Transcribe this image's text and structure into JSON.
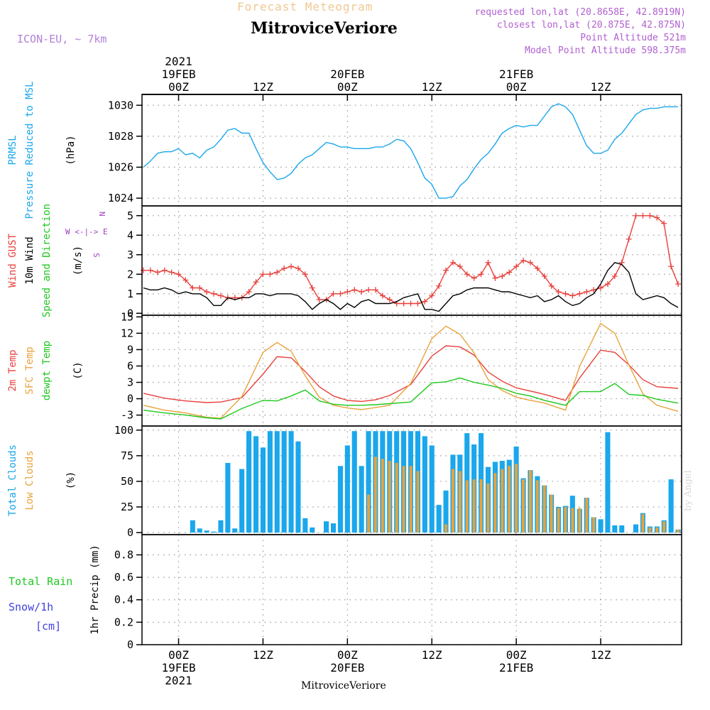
{
  "header": {
    "title": "Forecast Meteogram",
    "location": "MitroviceVeriore",
    "model": "ICON-EU, ~ 7km",
    "requested": "requested lon,lat (20.8658E, 42.8919N)",
    "closest": "closest lon,lat (20.875E, 42.875N)",
    "point_altitude": "Point Altitude 521m",
    "model_altitude": "Model Point Altitude 598.375m",
    "footer": "MitroviceVeriore",
    "watermark": "by Angel"
  },
  "time_axis": {
    "top_labels": [
      {
        "h": 0,
        "lines": [
          "2021",
          "19FEB",
          "00Z"
        ]
      },
      {
        "h": 12,
        "lines": [
          "12Z"
        ]
      },
      {
        "h": 24,
        "lines": [
          "20FEB",
          "00Z"
        ]
      },
      {
        "h": 36,
        "lines": [
          "12Z"
        ]
      },
      {
        "h": 48,
        "lines": [
          "21FEB",
          "00Z"
        ]
      },
      {
        "h": 60,
        "lines": [
          "12Z"
        ]
      }
    ],
    "bottom_labels": [
      {
        "h": 0,
        "lines": [
          "00Z",
          "19FEB",
          "2021"
        ]
      },
      {
        "h": 12,
        "lines": [
          "12Z"
        ]
      },
      {
        "h": 24,
        "lines": [
          "00Z",
          "20FEB"
        ]
      },
      {
        "h": 36,
        "lines": [
          "12Z"
        ]
      },
      {
        "h": 48,
        "lines": [
          "00Z",
          "21FEB"
        ]
      },
      {
        "h": 60,
        "lines": [
          "12Z"
        ]
      }
    ]
  },
  "colors": {
    "blue": "#1aa7ec",
    "orange": "#e8a33c",
    "red": "#e8413c",
    "green": "#1ec81e",
    "black": "#000000",
    "purple": "#a040c0",
    "snow": "#4040e0",
    "grid": "#999999"
  },
  "chart_data": [
    {
      "type": "line",
      "panel": "pressure",
      "ylabels": [
        {
          "text": "PRMSL",
          "color": "blue"
        },
        {
          "text": "Pressure Reduced to MSL",
          "color": "blue"
        },
        {
          "text": "(hPa)",
          "color": "black"
        }
      ],
      "ylim": [
        1023.5,
        1030.7
      ],
      "yticks": [
        1024,
        1026,
        1028,
        1030
      ],
      "x": [
        -5,
        -4,
        -3,
        -2,
        -1,
        0,
        1,
        2,
        3,
        4,
        5,
        6,
        7,
        8,
        9,
        10,
        11,
        12,
        13,
        14,
        15,
        16,
        17,
        18,
        19,
        20,
        21,
        22,
        23,
        24,
        25,
        26,
        27,
        28,
        29,
        30,
        31,
        32,
        33,
        34,
        35,
        36,
        37,
        38,
        39,
        40,
        41,
        42,
        43,
        44,
        45,
        46,
        47,
        48,
        49,
        50,
        51,
        52,
        53,
        54,
        55,
        56,
        57,
        58,
        59,
        60,
        61,
        62,
        63,
        64,
        65,
        66,
        67,
        68,
        69,
        70,
        71
      ],
      "series": [
        {
          "color": "blue",
          "values": [
            1026.0,
            1026.4,
            1026.9,
            1027.0,
            1027.0,
            1027.2,
            1026.8,
            1026.9,
            1026.6,
            1027.1,
            1027.3,
            1027.8,
            1028.4,
            1028.5,
            1028.2,
            1028.2,
            1027.2,
            1026.3,
            1025.7,
            1025.2,
            1025.3,
            1025.6,
            1026.2,
            1026.6,
            1026.8,
            1027.2,
            1027.6,
            1027.5,
            1027.3,
            1027.3,
            1027.2,
            1027.2,
            1027.2,
            1027.3,
            1027.3,
            1027.5,
            1027.8,
            1027.7,
            1027.2,
            1026.3,
            1025.3,
            1024.9,
            1024.0,
            1024.0,
            1024.1,
            1024.8,
            1025.2,
            1025.9,
            1026.5,
            1026.9,
            1027.5,
            1028.2,
            1028.5,
            1028.7,
            1028.6,
            1028.7,
            1028.7,
            1029.3,
            1029.9,
            1030.1,
            1029.9,
            1029.4,
            1028.4,
            1027.4,
            1026.9,
            1026.9,
            1027.1,
            1027.8,
            1028.2,
            1028.8,
            1029.4,
            1029.7,
            1029.8,
            1029.8,
            1029.9,
            1029.9,
            1029.9
          ]
        }
      ]
    },
    {
      "type": "line",
      "panel": "wind",
      "ylabels": [
        {
          "text": "Wind GUST",
          "color": "red"
        },
        {
          "text": "10m Wind",
          "color": "black"
        },
        {
          "text": "Speed and Direction",
          "color": "green"
        },
        {
          "text": "(m/s)",
          "color": "black"
        }
      ],
      "compass": {
        "n": "N",
        "s": "S",
        "w": "W",
        "e": "E"
      },
      "ylim": [
        -0.1,
        5.5
      ],
      "yticks": [
        0,
        1,
        2,
        3,
        4,
        5
      ],
      "x": [
        -5,
        -4,
        -3,
        -2,
        -1,
        0,
        1,
        2,
        3,
        4,
        5,
        6,
        7,
        8,
        9,
        10,
        11,
        12,
        13,
        14,
        15,
        16,
        17,
        18,
        19,
        20,
        21,
        22,
        23,
        24,
        25,
        26,
        27,
        28,
        29,
        30,
        31,
        32,
        33,
        34,
        35,
        36,
        37,
        38,
        39,
        40,
        41,
        42,
        43,
        44,
        45,
        46,
        47,
        48,
        49,
        50,
        51,
        52,
        53,
        54,
        55,
        56,
        57,
        58,
        59,
        60,
        61,
        62,
        63,
        64,
        65,
        66,
        67,
        68,
        69,
        70,
        71
      ],
      "series": [
        {
          "name": "Wind GUST",
          "color": "red",
          "marker": "+",
          "values": [
            2.2,
            2.2,
            2.1,
            2.2,
            2.1,
            2.0,
            1.7,
            1.3,
            1.3,
            1.1,
            1.0,
            0.9,
            0.8,
            0.8,
            0.8,
            1.1,
            1.6,
            2.0,
            2.0,
            2.1,
            2.3,
            2.4,
            2.3,
            2.0,
            1.3,
            0.7,
            0.7,
            1.0,
            1.0,
            1.1,
            1.2,
            1.1,
            1.2,
            1.2,
            0.9,
            0.7,
            0.5,
            0.5,
            0.5,
            0.5,
            0.6,
            0.9,
            1.4,
            2.2,
            2.6,
            2.4,
            2.0,
            1.8,
            2.0,
            2.6,
            1.8,
            1.9,
            2.1,
            2.4,
            2.7,
            2.6,
            2.3,
            1.9,
            1.4,
            1.1,
            1.0,
            0.9,
            1.0,
            1.1,
            1.2,
            1.3,
            1.5,
            1.9,
            2.6,
            3.8,
            5.0,
            5.0,
            5.0,
            4.9,
            4.6,
            2.4,
            1.5
          ]
        },
        {
          "name": "10m Wind",
          "color": "black",
          "values": [
            1.3,
            1.2,
            1.2,
            1.3,
            1.2,
            1.0,
            1.1,
            1.0,
            1.0,
            0.8,
            0.4,
            0.4,
            0.8,
            0.7,
            0.8,
            0.8,
            1.0,
            1.0,
            0.9,
            1.0,
            1.0,
            1.0,
            0.9,
            0.6,
            0.2,
            0.5,
            0.7,
            0.5,
            0.2,
            0.5,
            0.3,
            0.6,
            0.7,
            0.5,
            0.5,
            0.5,
            0.6,
            0.8,
            0.9,
            1.0,
            0.2,
            0.2,
            0.1,
            0.5,
            0.9,
            1.0,
            1.2,
            1.3,
            1.3,
            1.3,
            1.2,
            1.1,
            1.1,
            1.0,
            0.9,
            0.8,
            0.9,
            0.6,
            0.7,
            0.9,
            0.6,
            0.4,
            0.5,
            0.8,
            1.0,
            1.5,
            2.2,
            2.6,
            2.5,
            2.1,
            1.0,
            0.7,
            0.8,
            0.9,
            0.8,
            0.5,
            0.3
          ]
        }
      ]
    },
    {
      "type": "line",
      "panel": "temperature",
      "ylabels": [
        {
          "text": "2m Temp",
          "color": "red"
        },
        {
          "text": "SFC Temp",
          "color": "orange"
        },
        {
          "text": "dewpt Temp",
          "color": "green"
        },
        {
          "text": "(C)",
          "color": "black"
        }
      ],
      "ylim": [
        -5,
        15.3
      ],
      "yticks": [
        -3,
        0,
        3,
        6,
        9,
        12,
        15
      ],
      "x": [
        -5,
        -2,
        1,
        4,
        6,
        9,
        12,
        14,
        16,
        18,
        20,
        22,
        24,
        26,
        28,
        30,
        33,
        36,
        38,
        40,
        42,
        44,
        46,
        48,
        50,
        52,
        55,
        57,
        60,
        62,
        64,
        66,
        68,
        71
      ],
      "series": [
        {
          "name": "2m Temp",
          "color": "red",
          "values": [
            1.0,
            0.1,
            -0.4,
            -0.7,
            -0.6,
            0.2,
            4.5,
            7.7,
            7.5,
            5.0,
            2.2,
            0.5,
            -0.3,
            -0.5,
            -0.2,
            0.6,
            2.6,
            7.8,
            9.7,
            9.5,
            8.0,
            4.9,
            3.2,
            2.0,
            1.4,
            0.8,
            -0.3,
            3.8,
            8.9,
            8.5,
            6.2,
            3.5,
            2.2,
            1.9
          ]
        },
        {
          "name": "SFC Temp",
          "color": "orange",
          "values": [
            -1.2,
            -2.1,
            -2.6,
            -3.4,
            -3.6,
            0.4,
            8.5,
            10.3,
            8.7,
            4.2,
            0.3,
            -1.2,
            -1.7,
            -2.0,
            -1.6,
            -1.2,
            2.8,
            11.0,
            13.3,
            11.8,
            8.4,
            3.5,
            1.5,
            0.3,
            -0.3,
            -0.8,
            -2.1,
            5.9,
            13.8,
            12.0,
            6.2,
            0.9,
            -1.2,
            -2.3
          ]
        },
        {
          "name": "dewpt Temp",
          "color": "green",
          "values": [
            -2.1,
            -2.6,
            -3.0,
            -3.5,
            -3.7,
            -1.8,
            -0.3,
            -0.4,
            0.5,
            1.6,
            -0.4,
            -1.0,
            -1.2,
            -1.2,
            -1.1,
            -0.9,
            -0.6,
            2.9,
            3.1,
            3.8,
            3.0,
            2.5,
            1.9,
            1.0,
            0.5,
            -0.3,
            -1.2,
            1.3,
            1.3,
            2.8,
            0.8,
            0.6,
            -0.1,
            -0.8
          ]
        }
      ]
    },
    {
      "type": "bar",
      "panel": "clouds",
      "ylabels": [
        {
          "text": "Total Clouds",
          "color": "blue"
        },
        {
          "text": "Low Clouds",
          "color": "orange"
        },
        {
          "text": "(%)",
          "color": "black"
        }
      ],
      "ylim": [
        -2,
        104
      ],
      "yticks": [
        0,
        25,
        50,
        75,
        100
      ],
      "x": [
        -5,
        -4,
        -3,
        -2,
        -1,
        0,
        1,
        2,
        3,
        4,
        5,
        6,
        7,
        8,
        9,
        10,
        11,
        12,
        13,
        14,
        15,
        16,
        17,
        18,
        19,
        20,
        21,
        22,
        23,
        24,
        25,
        26,
        27,
        28,
        29,
        30,
        31,
        32,
        33,
        34,
        35,
        36,
        37,
        38,
        39,
        40,
        41,
        42,
        43,
        44,
        45,
        46,
        47,
        48,
        49,
        50,
        51,
        52,
        53,
        54,
        55,
        56,
        57,
        58,
        59,
        60,
        61,
        62,
        63,
        64,
        65,
        66,
        67,
        68,
        69,
        70,
        71
      ],
      "series": [
        {
          "name": "Total Clouds",
          "color": "blue",
          "values": [
            0,
            0,
            0,
            0,
            0,
            0,
            0,
            12,
            4,
            2,
            1,
            12,
            68,
            4,
            62,
            99,
            94,
            83,
            99,
            99,
            99,
            99,
            89,
            14,
            5,
            0,
            11,
            9,
            65,
            85,
            99,
            65,
            99,
            99,
            99,
            99,
            99,
            99,
            99,
            99,
            94,
            85,
            27,
            41,
            76,
            76,
            97,
            86,
            97,
            64,
            69,
            70,
            71,
            84,
            53,
            61,
            55,
            46,
            37,
            25,
            26,
            36,
            23,
            34,
            15,
            13,
            98,
            7,
            7,
            0,
            8,
            19,
            6,
            6,
            12,
            52,
            3
          ]
        },
        {
          "name": "Low Clouds",
          "color": "orange",
          "values": [
            0,
            0,
            0,
            0,
            0,
            0,
            0,
            0,
            0,
            0,
            0,
            0,
            0,
            0,
            0,
            0,
            0,
            0,
            0,
            0,
            0,
            0,
            0,
            0,
            0,
            0,
            0,
            0,
            0,
            0,
            0,
            0,
            37,
            74,
            72,
            70,
            68,
            65,
            65,
            60,
            0,
            0,
            0,
            8,
            62,
            60,
            51,
            52,
            52,
            48,
            58,
            62,
            65,
            67,
            52,
            61,
            51,
            46,
            37,
            24,
            25,
            24,
            24,
            34,
            15,
            0,
            0,
            0,
            0,
            0,
            0,
            18,
            5,
            5,
            11,
            0,
            3
          ]
        }
      ]
    },
    {
      "type": "bar",
      "panel": "precip",
      "ylabels": [
        {
          "text": "1hr Precip (mm)",
          "color": "black"
        }
      ],
      "side_labels": [
        {
          "text": "Total   Rain",
          "color": "green"
        },
        {
          "text": "Snow/1h",
          "color": "snow"
        },
        {
          "text": "[cm]",
          "color": "snow"
        }
      ],
      "ylim": [
        0,
        0.98
      ],
      "yticks": [
        0,
        0.2,
        0.4,
        0.6,
        0.8
      ],
      "x": [],
      "series": [
        {
          "name": "Total Rain",
          "color": "green",
          "values": []
        }
      ]
    }
  ]
}
